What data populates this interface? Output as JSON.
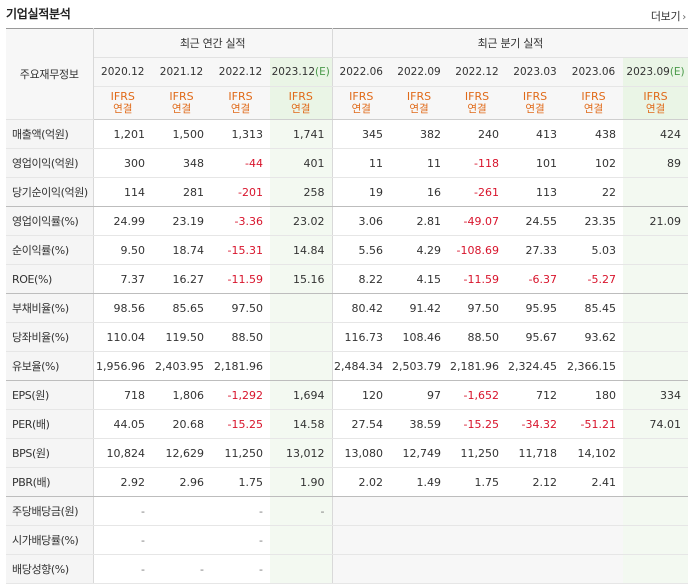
{
  "header": {
    "title": "기업실적분석",
    "more_label": "더보기",
    "more_icon": "chevron-right-icon"
  },
  "table": {
    "label_header": "주요재무정보",
    "annual_group": "최근 연간 실적",
    "quarter_group": "최근 분기 실적",
    "periods": [
      "2020.12",
      "2021.12",
      "2022.12",
      "2023.12(E)",
      "2022.06",
      "2022.09",
      "2022.12",
      "2023.03",
      "2023.06",
      "2023.09(E)"
    ],
    "ifrs_label": "IFRS",
    "kind_label": "연결",
    "rows": [
      {
        "label": "매출액(억원)",
        "values": [
          "1,201",
          "1,500",
          "1,313",
          "1,741",
          "345",
          "382",
          "240",
          "413",
          "438",
          "424"
        ],
        "group_end": false
      },
      {
        "label": "영업이익(억원)",
        "values": [
          "300",
          "348",
          "-44",
          "401",
          "11",
          "11",
          "-118",
          "101",
          "102",
          "89"
        ],
        "group_end": false
      },
      {
        "label": "당기순이익(억원)",
        "values": [
          "114",
          "281",
          "-201",
          "258",
          "19",
          "16",
          "-261",
          "113",
          "22",
          ""
        ],
        "group_end": true
      },
      {
        "label": "영업이익률(%)",
        "values": [
          "24.99",
          "23.19",
          "-3.36",
          "23.02",
          "3.06",
          "2.81",
          "-49.07",
          "24.55",
          "23.35",
          "21.09"
        ],
        "group_end": false
      },
      {
        "label": "순이익률(%)",
        "values": [
          "9.50",
          "18.74",
          "-15.31",
          "14.84",
          "5.56",
          "4.29",
          "-108.69",
          "27.33",
          "5.03",
          ""
        ],
        "group_end": false
      },
      {
        "label": "ROE(%)",
        "values": [
          "7.37",
          "16.27",
          "-11.59",
          "15.16",
          "8.22",
          "4.15",
          "-11.59",
          "-6.37",
          "-5.27",
          ""
        ],
        "group_end": true
      },
      {
        "label": "부채비율(%)",
        "values": [
          "98.56",
          "85.65",
          "97.50",
          "",
          "80.42",
          "91.42",
          "97.50",
          "95.95",
          "85.45",
          ""
        ],
        "group_end": false
      },
      {
        "label": "당좌비율(%)",
        "values": [
          "110.04",
          "119.50",
          "88.50",
          "",
          "116.73",
          "108.46",
          "88.50",
          "95.67",
          "93.62",
          ""
        ],
        "group_end": false
      },
      {
        "label": "유보율(%)",
        "values": [
          "1,956.96",
          "2,403.95",
          "2,181.96",
          "",
          "2,484.34",
          "2,503.79",
          "2,181.96",
          "2,324.45",
          "2,366.15",
          ""
        ],
        "group_end": true
      },
      {
        "label": "EPS(원)",
        "values": [
          "718",
          "1,806",
          "-1,292",
          "1,694",
          "120",
          "97",
          "-1,652",
          "712",
          "180",
          "334"
        ],
        "group_end": false
      },
      {
        "label": "PER(배)",
        "values": [
          "44.05",
          "20.68",
          "-15.25",
          "14.58",
          "27.54",
          "38.59",
          "-15.25",
          "-34.32",
          "-51.21",
          "74.01"
        ],
        "group_end": false
      },
      {
        "label": "BPS(원)",
        "values": [
          "10,824",
          "12,629",
          "11,250",
          "13,012",
          "13,080",
          "12,749",
          "11,250",
          "11,718",
          "14,102",
          ""
        ],
        "group_end": false
      },
      {
        "label": "PBR(배)",
        "values": [
          "2.92",
          "2.96",
          "1.75",
          "1.90",
          "2.02",
          "1.49",
          "1.75",
          "2.12",
          "2.41",
          ""
        ],
        "group_end": true
      },
      {
        "label": "주당배당금(원)",
        "values": [
          "-",
          "",
          "-",
          "-",
          "",
          "",
          "",
          "",
          "",
          ""
        ],
        "group_end": false,
        "dividend": true
      },
      {
        "label": "시가배당률(%)",
        "values": [
          "-",
          "",
          "-",
          "",
          "",
          "",
          "",
          "",
          "",
          ""
        ],
        "group_end": false,
        "dividend": true
      },
      {
        "label": "배당성향(%)",
        "values": [
          "-",
          "-",
          "-",
          "",
          "",
          "",
          "",
          "",
          "",
          ""
        ],
        "group_end": false,
        "dividend": true
      }
    ]
  },
  "colors": {
    "negative": "#d8142c",
    "ifrs": "#e06a19",
    "estimate": "#4a9a4a",
    "estimate_bg": "#f3f9f1"
  }
}
